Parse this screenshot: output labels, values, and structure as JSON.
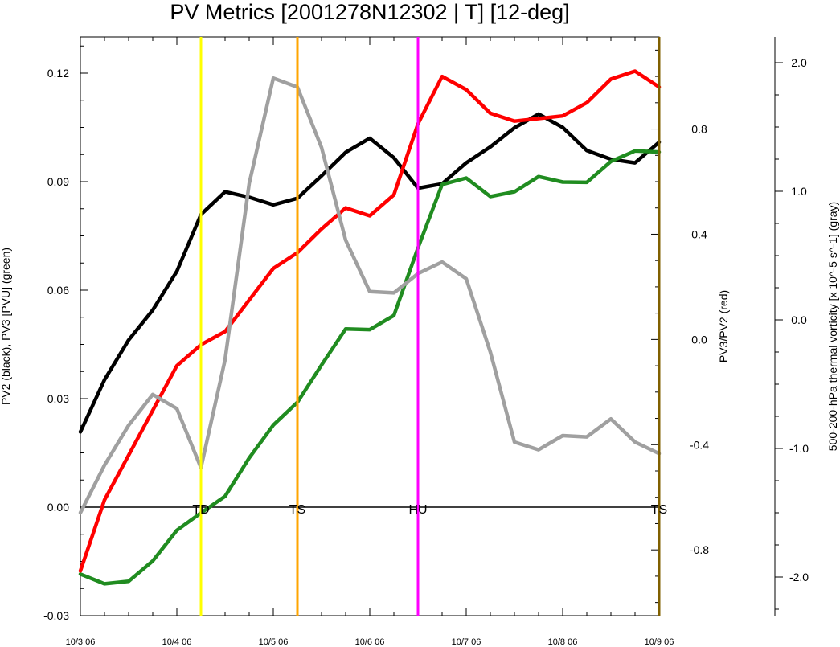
{
  "chart_data": {
    "type": "line",
    "title": "PV Metrics [2001278N12302 | T] [12-deg]",
    "ylabel_left": "PV2 (black), PV3 [PVU] (green)",
    "ylabel_right1": "PV3/PV2 (red)",
    "ylabel_right2": "500-200-hPa thermal vorticity [x 10^-5 s^-1] (gray)",
    "x_tick_labels": [
      "10/3 06",
      "10/4 06",
      "10/5 06",
      "10/6 06",
      "10/7 06",
      "10/8 06",
      "10/9 06"
    ],
    "xlim": [
      0,
      6
    ],
    "y_left": {
      "lim": [
        -0.03,
        0.13
      ],
      "ticks": [
        -0.03,
        0.0,
        0.03,
        0.06,
        0.09,
        0.12
      ],
      "tick_labels": [
        "-0.03",
        "0.00",
        "0.03",
        "0.06",
        "0.09",
        "0.12"
      ]
    },
    "y_right1": {
      "lim": [
        -1.05,
        1.15
      ],
      "ticks": [
        -0.8,
        -0.4,
        0.0,
        0.4,
        0.8
      ],
      "tick_labels": [
        "-0.8",
        "-0.4",
        "0.0",
        "0.4",
        "0.8"
      ]
    },
    "y_right2": {
      "lim": [
        -2.3,
        2.2
      ],
      "ticks": [
        -2.0,
        -1.0,
        0.0,
        1.0,
        2.0
      ],
      "tick_labels": [
        "-2.0",
        "-1.0",
        "0.0",
        "1.0",
        "2.0"
      ]
    },
    "x": [
      0,
      0.25,
      0.5,
      0.75,
      1.0,
      1.25,
      1.5,
      1.75,
      2.0,
      2.25,
      2.5,
      2.75,
      3.0,
      3.25,
      3.5,
      3.75,
      4.0,
      4.25,
      4.5,
      4.75,
      5.0,
      5.25,
      5.5,
      5.75,
      6.0
    ],
    "series": [
      {
        "color": "#000000",
        "axis": "left",
        "values": [
          0.0208,
          0.0352,
          0.0462,
          0.0545,
          0.0652,
          0.0809,
          0.0872,
          0.0857,
          0.0836,
          0.0854,
          0.0916,
          0.0981,
          0.102,
          0.0966,
          0.0882,
          0.0894,
          0.0952,
          0.0996,
          0.1049,
          0.1087,
          0.105,
          0.0986,
          0.0962,
          0.0952,
          0.1009
        ]
      },
      {
        "color": "#208c20",
        "axis": "left",
        "values": [
          -0.0185,
          -0.0212,
          -0.0205,
          -0.0149,
          -0.0064,
          -0.0016,
          0.003,
          0.0136,
          0.0227,
          0.029,
          0.0393,
          0.0493,
          0.0491,
          0.053,
          0.0717,
          0.0892,
          0.091,
          0.0859,
          0.0872,
          0.0914,
          0.0899,
          0.0898,
          0.0956,
          0.0985,
          0.0982
        ]
      },
      {
        "color": "#ff0000",
        "axis": "right1",
        "values": [
          -0.88,
          -0.61,
          -0.44,
          -0.27,
          -0.1,
          -0.02,
          0.03,
          0.15,
          0.27,
          0.33,
          0.42,
          0.5,
          0.47,
          0.55,
          0.82,
          1.0,
          0.95,
          0.86,
          0.83,
          0.84,
          0.85,
          0.9,
          0.99,
          1.02,
          0.96
        ]
      },
      {
        "color": "#a0a0a0",
        "axis": "right2",
        "values": [
          -1.5,
          -1.13,
          -0.82,
          -0.58,
          -0.69,
          -1.15,
          -0.31,
          1.06,
          1.88,
          1.81,
          1.34,
          0.62,
          0.22,
          0.21,
          0.36,
          0.45,
          0.32,
          -0.25,
          -0.95,
          -1.01,
          -0.9,
          -0.91,
          -0.77,
          -0.95,
          -1.04
        ]
      }
    ],
    "zero_line": 0.0,
    "event_lines": [
      {
        "x": 1.25,
        "color": "#ffff00",
        "label": "TD"
      },
      {
        "x": 2.25,
        "color": "#ffa500",
        "label": "TS"
      },
      {
        "x": 3.5,
        "color": "#ff00ff",
        "label": "HU"
      },
      {
        "x": 6.0,
        "color": "#806000",
        "label": "TS"
      }
    ]
  }
}
